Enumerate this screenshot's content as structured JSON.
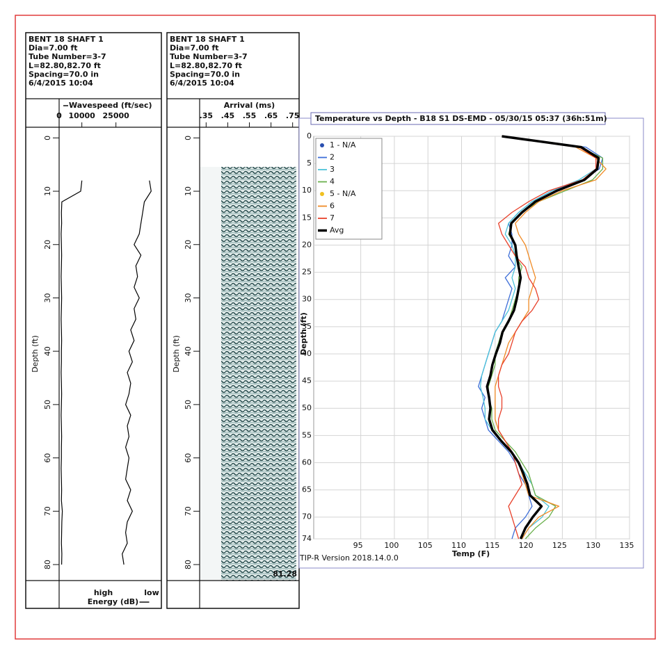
{
  "chart_data": [
    {
      "type": "crosshole-log",
      "header": [
        "BENT 18 SHAFT 1",
        "Dia=7.00 ft",
        "Tube Number=3-7",
        "L=82.80,82.70 ft",
        "Spacing=70.0 in",
        "6/4/2015 10:04"
      ],
      "x_label": "Wavespeed (ft/sec)",
      "xlim": [
        0,
        45000
      ],
      "xticks": [
        0,
        10000,
        25000
      ],
      "y_label": "Depth (ft)",
      "ylim": [
        -2,
        83
      ],
      "yticks": [
        0,
        10,
        20,
        30,
        40,
        50,
        60,
        70,
        80
      ],
      "x2_label": "Energy (dB)",
      "x2lim": [
        0,
        30
      ],
      "x2_end_labels": [
        "high",
        "low"
      ],
      "x": [
        0,
        2,
        4,
        6,
        8,
        10,
        12,
        14,
        16,
        18,
        20,
        22,
        24,
        26,
        28,
        30,
        32,
        34,
        36,
        38,
        40,
        42,
        44,
        46,
        48,
        50,
        52,
        54,
        56,
        58,
        60,
        62,
        64,
        66,
        68,
        70,
        72,
        74,
        76,
        78,
        80,
        82
      ],
      "series": [
        {
          "color": "#000000",
          "values": [
            null,
            null,
            null,
            null,
            10000,
            9500,
            1200,
            1000,
            1100,
            900,
            1000,
            1100,
            1000,
            900,
            1000,
            1100,
            1000,
            900,
            1000,
            1100,
            1000,
            1000,
            900,
            1000,
            1100,
            1000,
            900,
            1000,
            1100,
            1000,
            1000,
            900,
            1000,
            1100,
            1000,
            1400,
            1200,
            1100,
            1000,
            1200,
            1100,
            null
          ]
        },
        {
          "color": "#000000",
          "axis": "x2",
          "values": [
            null,
            null,
            null,
            null,
            26.5,
            27,
            25,
            24.5,
            24,
            23.5,
            22,
            24,
            22.5,
            23,
            22,
            23.5,
            22,
            22.5,
            21,
            22,
            20.5,
            21.5,
            20,
            21,
            20.5,
            19.5,
            21,
            20,
            20.5,
            19.5,
            20.5,
            20,
            19.5,
            21,
            20,
            21.5,
            20,
            19.5,
            20,
            18.5,
            19,
            null
          ]
        }
      ]
    },
    {
      "type": "crosshole-log",
      "header": [
        "BENT 18 SHAFT 1",
        "Dia=7.00 ft",
        "Tube Number=3-7",
        "L=82.80,82.70 ft",
        "Spacing=70.0 in",
        "6/4/2015 10:04"
      ],
      "x_label": "Arrival (ms)",
      "xlim": [
        0.32,
        0.78
      ],
      "xticks": [
        {
          "value": 0.35,
          "label": ".35"
        },
        {
          "value": 0.45,
          "label": ".45"
        },
        {
          "value": 0.55,
          "label": ".55"
        },
        {
          "value": 0.65,
          "label": ".65"
        },
        {
          "value": 0.75,
          "label": ".75"
        }
      ],
      "y_label": "Depth (ft)",
      "ylim": [
        -2,
        83
      ],
      "yticks": [
        0,
        10,
        20,
        30,
        40,
        50,
        60,
        70,
        80
      ],
      "annotation": "81.28"
    },
    {
      "type": "line",
      "title": "Temperature vs Depth - B18 S1 DS-EMD - 05/30/15 05:37 (36h:51m)",
      "x_label": "Temp (F)",
      "y_label": "Depth (ft)",
      "footnote": "TIP-R Version 2018.14.0.0",
      "xlim": [
        88,
        135
      ],
      "xticks": [
        95,
        100,
        105,
        110,
        115,
        120,
        125,
        130,
        135
      ],
      "ylim": [
        0,
        74
      ],
      "yticks": [
        0,
        5,
        10,
        15,
        20,
        25,
        30,
        35,
        40,
        45,
        50,
        55,
        60,
        65,
        70,
        74
      ],
      "grid": true,
      "legend": "top-left",
      "x": [
        0,
        2,
        4,
        6,
        8,
        10,
        12,
        14,
        16,
        18,
        20,
        22,
        24,
        26,
        28,
        30,
        32,
        34,
        36,
        38,
        40,
        42,
        44,
        46,
        48,
        50,
        52,
        54,
        56,
        58,
        60,
        62,
        64,
        66,
        68,
        70,
        72,
        74
      ],
      "series": [
        {
          "name": "1 - N/A",
          "color": "#2a4fb0",
          "marker": "circle"
        },
        {
          "name": "2",
          "color": "#3d6ed8",
          "values": [
            116,
            128.5,
            131,
            130.5,
            128,
            123.5,
            120.5,
            118.5,
            117,
            117.5,
            117.5,
            117,
            118,
            116.5,
            117.5,
            117,
            116.5,
            116,
            115,
            114.5,
            114,
            113.5,
            113,
            112.5,
            113.5,
            113,
            113.5,
            114,
            115.5,
            117,
            118,
            118.5,
            119.5,
            120,
            120.5,
            119.5,
            118,
            117.5
          ]
        },
        {
          "name": "3",
          "color": "#4cc3d9",
          "values": [
            116,
            128,
            130.5,
            130,
            127.5,
            123.5,
            120.5,
            118.5,
            117,
            116.5,
            117.5,
            118,
            118,
            117.5,
            118,
            117.5,
            117,
            116,
            115,
            114.5,
            114,
            113.5,
            113,
            112.8,
            113.2,
            113.5,
            113.5,
            114.5,
            116,
            117.5,
            118.5,
            119.5,
            120.5,
            121,
            123,
            122,
            120,
            119
          ]
        },
        {
          "name": "4",
          "color": "#6ab04c",
          "values": [
            116,
            127.5,
            131,
            131,
            129.5,
            125.5,
            121.5,
            119,
            117.5,
            117,
            118,
            118,
            119,
            118.5,
            118.5,
            118,
            117.5,
            117,
            116,
            115.5,
            115,
            115,
            114.5,
            114,
            114,
            114.5,
            114.5,
            115,
            116.5,
            118,
            119,
            120,
            120.5,
            121,
            124,
            123,
            121,
            119.5
          ]
        },
        {
          "name": "5 - N/A",
          "color": "#f0c020",
          "marker": "circle"
        },
        {
          "name": "6",
          "color": "#f08a24",
          "values": [
            116,
            127,
            130,
            131.5,
            130,
            125,
            121.5,
            119.5,
            118,
            118.5,
            119.5,
            120,
            120.5,
            121,
            120.5,
            120,
            120,
            119,
            118,
            117,
            116.5,
            116,
            115.5,
            115,
            115,
            115,
            115,
            115.5,
            116.5,
            117.5,
            118.5,
            119,
            119.5,
            120,
            124.5,
            121.5,
            120,
            119
          ]
        },
        {
          "name": "7",
          "color": "#e8402a",
          "values": [
            116,
            127.5,
            130,
            130,
            128,
            123,
            120,
            117.5,
            115.5,
            116,
            117,
            118,
            119.5,
            120,
            121,
            121.5,
            120.5,
            119,
            118,
            117.5,
            117,
            116,
            115.5,
            115.5,
            116,
            116,
            115.5,
            115.5,
            116.5,
            117.5,
            118,
            118.5,
            119,
            118,
            117,
            117.5,
            118,
            118.5
          ]
        },
        {
          "name": "Avg",
          "color": "#000000",
          "width": 3.5,
          "values": [
            116,
            127.8,
            130.4,
            130.2,
            128.3,
            124.2,
            121,
            119,
            117.4,
            117.2,
            118,
            118.2,
            118.5,
            118.8,
            118.5,
            118.2,
            117.8,
            117,
            116.1,
            115.7,
            115.1,
            114.6,
            114.3,
            113.8,
            114.1,
            114.3,
            114.1,
            114.6,
            115.9,
            117.4,
            118.5,
            119.2,
            119.8,
            120.2,
            121.9,
            120.6,
            119.5,
            118.8
          ]
        }
      ]
    }
  ]
}
